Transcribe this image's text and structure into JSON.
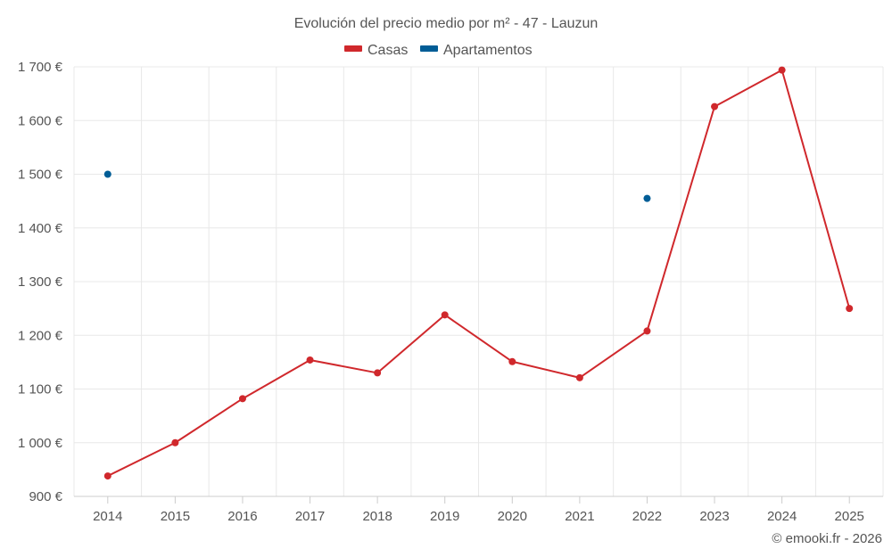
{
  "chart_data": {
    "type": "line",
    "title": "Evolución del precio medio por m² - 47 - Lauzun",
    "categories": [
      "2014",
      "2015",
      "2016",
      "2017",
      "2018",
      "2019",
      "2020",
      "2021",
      "2022",
      "2023",
      "2024",
      "2025"
    ],
    "series": [
      {
        "name": "Casas",
        "color": "#d0282c",
        "values": [
          938,
          1000,
          1082,
          1154,
          1130,
          1238,
          1151,
          1121,
          1208,
          1626,
          1694,
          1250
        ]
      },
      {
        "name": "Apartamentos",
        "color": "#005d96",
        "values": [
          1500,
          null,
          null,
          null,
          null,
          null,
          null,
          null,
          1455,
          null,
          null,
          null
        ]
      }
    ],
    "ylim": [
      900,
      1700
    ],
    "yticks": [
      900,
      1000,
      1100,
      1200,
      1300,
      1400,
      1500,
      1600,
      1700
    ],
    "ytick_labels": [
      "900 €",
      "1 000 €",
      "1 100 €",
      "1 200 €",
      "1 300 €",
      "1 400 €",
      "1 500 €",
      "1 600 €",
      "1 700 €"
    ],
    "xlabel": "",
    "ylabel": "",
    "grid": true,
    "legend_position": "top-center"
  },
  "credit": "© emooki.fr - 2026"
}
